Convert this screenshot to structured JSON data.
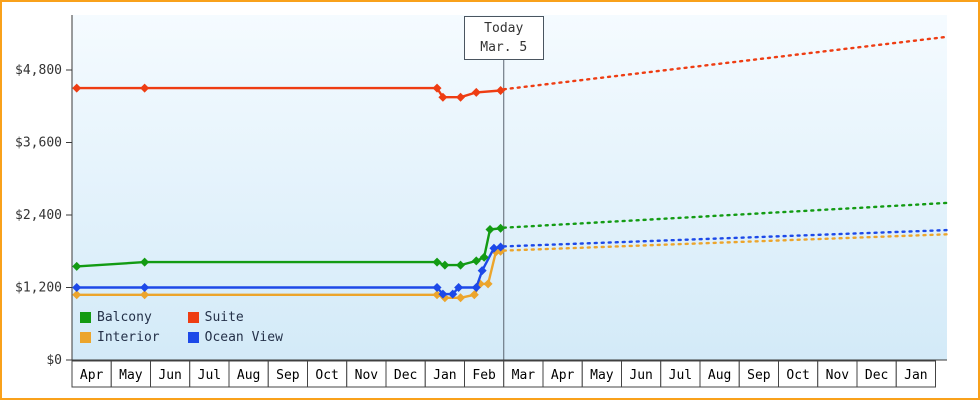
{
  "window": {
    "border_color": "#f9a11b",
    "background": "#ffffff"
  },
  "chart_data": {
    "type": "line",
    "description": "Cabin price history with forecast (dotted) by cabin category",
    "today_marker": {
      "line1": "Today",
      "line2": "Mar. 5",
      "month_pos": 11.0
    },
    "x_axis": {
      "months": [
        "Apr",
        "May",
        "Jun",
        "Jul",
        "Aug",
        "Sep",
        "Oct",
        "Nov",
        "Dec",
        "Jan",
        "Feb",
        "Mar",
        "Apr",
        "May",
        "Jun",
        "Jul",
        "Aug",
        "Sep",
        "Oct",
        "Nov",
        "Dec",
        "Jan"
      ]
    },
    "y_axis": {
      "ticks": [
        0,
        1200,
        2400,
        3600,
        4800
      ],
      "tick_labels": [
        "$0",
        "$1,200",
        "$2,400",
        "$3,600",
        "$4,800"
      ],
      "ymax": 5700
    },
    "style": {
      "plot_bg_top": "#f5fbff",
      "plot_bg_bottom": "#d3eaf8",
      "axis_color": "#3a3a3a",
      "box_stroke": "#444444",
      "box_fill": "#ffffff",
      "tick_text_color": "#333333",
      "month_text_color": "#000000",
      "today_line_color": "#5a6470"
    },
    "series": [
      {
        "name": "Balcony",
        "color": "#139b13",
        "z": 3,
        "solid": [
          [
            0.12,
            1550
          ],
          [
            1.85,
            1620
          ],
          [
            9.3,
            1620
          ],
          [
            9.5,
            1570
          ],
          [
            9.9,
            1570
          ],
          [
            10.3,
            1640
          ],
          [
            10.5,
            1700
          ],
          [
            10.65,
            2160
          ],
          [
            10.92,
            2180
          ]
        ],
        "dotted": [
          [
            11.0,
            2190
          ],
          [
            22.3,
            2600
          ]
        ]
      },
      {
        "name": "Suite",
        "color": "#ee3d13",
        "z": 4,
        "solid": [
          [
            0.12,
            4500
          ],
          [
            1.85,
            4500
          ],
          [
            9.3,
            4500
          ],
          [
            9.45,
            4350
          ],
          [
            9.9,
            4350
          ],
          [
            10.3,
            4430
          ],
          [
            10.92,
            4460
          ]
        ],
        "dotted": [
          [
            11.0,
            4480
          ],
          [
            22.3,
            5350
          ]
        ]
      },
      {
        "name": "Interior",
        "color": "#eca52c",
        "z": 1,
        "solid": [
          [
            0.12,
            1080
          ],
          [
            1.85,
            1080
          ],
          [
            9.3,
            1080
          ],
          [
            9.5,
            1030
          ],
          [
            9.9,
            1030
          ],
          [
            10.25,
            1080
          ],
          [
            10.4,
            1260
          ],
          [
            10.6,
            1260
          ],
          [
            10.8,
            1790
          ],
          [
            10.92,
            1800
          ]
        ],
        "dotted": [
          [
            11.0,
            1810
          ],
          [
            22.3,
            2080
          ]
        ]
      },
      {
        "name": "Ocean View",
        "color": "#1d49e8",
        "z": 2,
        "solid": [
          [
            0.12,
            1200
          ],
          [
            1.85,
            1200
          ],
          [
            9.3,
            1200
          ],
          [
            9.45,
            1090
          ],
          [
            9.7,
            1090
          ],
          [
            9.85,
            1200
          ],
          [
            10.3,
            1200
          ],
          [
            10.45,
            1480
          ],
          [
            10.75,
            1850
          ],
          [
            10.92,
            1870
          ]
        ],
        "dotted": [
          [
            11.0,
            1880
          ],
          [
            22.3,
            2150
          ]
        ]
      }
    ],
    "legend": {
      "order": [
        "Balcony",
        "Suite",
        "Interior",
        "Ocean View"
      ]
    }
  }
}
